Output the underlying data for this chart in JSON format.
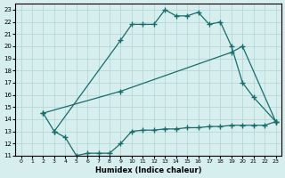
{
  "xlabel": "Humidex (Indice chaleur)",
  "xlim": [
    -0.5,
    23.5
  ],
  "ylim": [
    11,
    23.5
  ],
  "yticks": [
    11,
    12,
    13,
    14,
    15,
    16,
    17,
    18,
    19,
    20,
    21,
    22,
    23
  ],
  "xticks": [
    0,
    1,
    2,
    3,
    4,
    5,
    6,
    7,
    8,
    9,
    10,
    11,
    12,
    13,
    14,
    15,
    16,
    17,
    18,
    19,
    20,
    21,
    22,
    23
  ],
  "bg_color": "#d6eeee",
  "line_color": "#1a6b6b",
  "grid_color": "#b0d4d4",
  "line1_x": [
    2,
    3,
    9,
    10,
    11,
    12,
    13,
    14,
    15,
    16,
    17,
    18,
    19,
    20,
    21,
    23
  ],
  "line1_y": [
    14.5,
    13.0,
    20.5,
    21.8,
    21.8,
    21.8,
    23.0,
    22.5,
    22.5,
    22.8,
    21.8,
    22.0,
    20.0,
    17.0,
    15.8,
    13.8
  ],
  "line2_x": [
    2,
    9,
    19,
    20,
    23
  ],
  "line2_y": [
    14.5,
    16.3,
    19.5,
    20.0,
    13.8
  ],
  "line3_x": [
    3,
    4,
    5,
    6,
    7,
    8,
    9,
    10,
    11,
    12,
    13,
    14,
    15,
    16,
    17,
    18,
    19,
    20,
    21,
    22,
    23
  ],
  "line3_y": [
    13.0,
    12.5,
    11.0,
    11.2,
    11.2,
    11.2,
    12.0,
    13.0,
    13.1,
    13.1,
    13.2,
    13.2,
    13.3,
    13.3,
    13.4,
    13.4,
    13.5,
    13.5,
    13.5,
    13.5,
    13.8
  ]
}
